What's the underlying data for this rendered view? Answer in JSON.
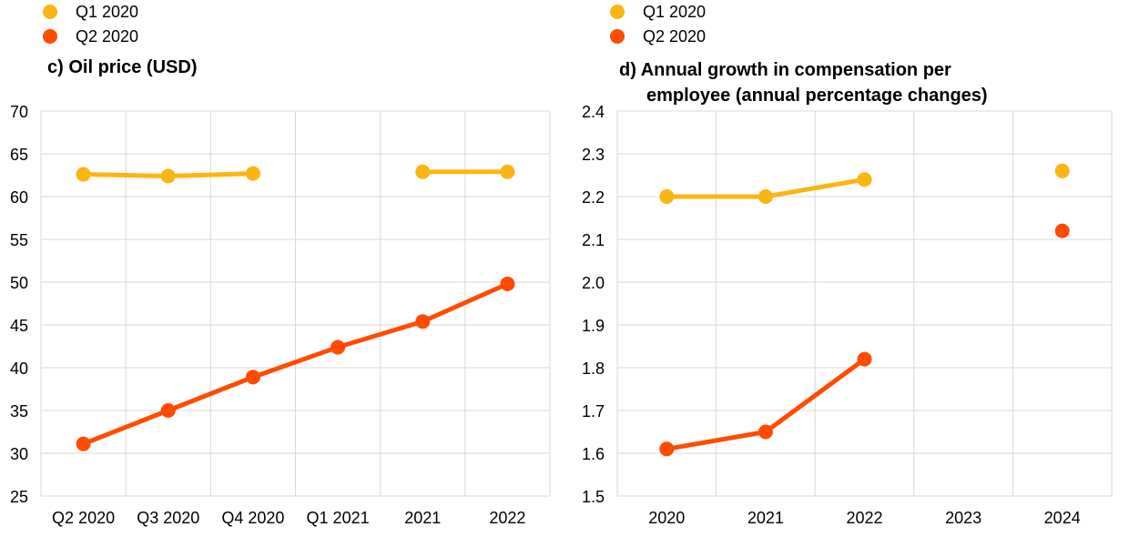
{
  "colors": {
    "q1": "#fbb513",
    "q2": "#ff4b00",
    "grid": "#d9d9d9"
  },
  "legend": [
    {
      "label": "Q1 2020",
      "color": "#fbb513"
    },
    {
      "label": "Q2 2020",
      "color": "#ff4b00"
    }
  ],
  "chart_data": [
    {
      "type": "line",
      "title": "c) Oil price (USD)",
      "categories": [
        "Q2 2020",
        "Q3 2020",
        "Q4 2020",
        "Q1 2021",
        "2021",
        "2022"
      ],
      "ylim": [
        25,
        70
      ],
      "yticks": [
        25,
        30,
        35,
        40,
        45,
        50,
        55,
        60,
        65,
        70
      ],
      "grid": true,
      "legend_position": "top-left",
      "series": [
        {
          "name": "Q1 2020",
          "color": "#fbb513",
          "values": [
            62.6,
            62.4,
            62.7,
            null,
            62.9,
            62.9
          ]
        },
        {
          "name": "Q2 2020",
          "color": "#ff4b00",
          "values": [
            31.1,
            35.0,
            38.9,
            42.4,
            45.4,
            49.8
          ]
        }
      ]
    },
    {
      "type": "line",
      "title": [
        "d) Annual growth in compensation per",
        "employee (annual percentage changes)"
      ],
      "categories": [
        "2020",
        "2021",
        "2022",
        "2023",
        "2024"
      ],
      "ylim": [
        1.5,
        2.4
      ],
      "yticks": [
        "1.5",
        "1.6",
        "1.7",
        "1.8",
        "1.9",
        "2.0",
        "2.1",
        "2.2",
        "2.3",
        "2.4"
      ],
      "grid": true,
      "legend_position": "top-left",
      "series": [
        {
          "name": "Q1 2020",
          "color": "#fbb513",
          "values": [
            2.2,
            2.2,
            2.24,
            null,
            2.26
          ]
        },
        {
          "name": "Q2 2020",
          "color": "#ff4b00",
          "values": [
            1.61,
            1.65,
            1.82,
            null,
            2.12
          ]
        }
      ]
    }
  ]
}
